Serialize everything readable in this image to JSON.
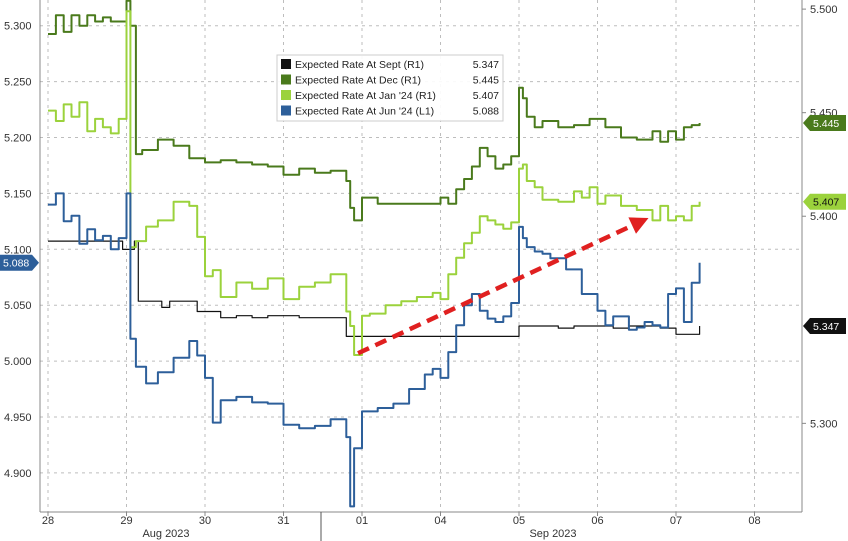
{
  "chart_data": {
    "type": "line",
    "title": "",
    "xlabel": "",
    "x_tick_labels": [
      "28",
      "29",
      "30",
      "31",
      "01",
      "04",
      "05",
      "06",
      "07",
      "08"
    ],
    "month_labels": [
      "Aug 2023",
      "Sep 2023"
    ],
    "left_axis": {
      "ticks": [
        "4.900",
        "4.950",
        "5.000",
        "5.050",
        "5.100",
        "5.150",
        "5.200",
        "5.250",
        "5.300"
      ],
      "ylim": [
        4.865,
        5.323
      ]
    },
    "right_axis": {
      "ticks": [
        "5.300",
        "5.400",
        "5.450",
        "5.500"
      ],
      "ylim": [
        5.2572,
        5.5044
      ]
    },
    "grid": true,
    "legend_position": "top-center",
    "series": [
      {
        "name": "Expected Rate At Sept (R1)",
        "legend_value": "5.347",
        "axis": "right",
        "color": "#111111",
        "x": [
          0,
          0.9,
          0.95,
          1.1,
          1.15,
          1.35,
          1.45,
          1.55,
          1.8,
          1.9,
          2.1,
          2.2,
          2.4,
          2.6,
          2.8,
          3.0,
          3.2,
          3.5,
          3.75,
          3.8,
          4.1,
          4.5,
          5.0,
          5.5,
          5.9,
          6.0,
          6.1,
          6.3,
          6.5,
          6.7,
          7.0,
          7.2,
          7.4,
          7.6,
          7.8,
          8.0,
          8.3
        ],
        "values": [
          5.388,
          5.388,
          5.384,
          5.388,
          5.359,
          5.359,
          5.356,
          5.359,
          5.359,
          5.354,
          5.354,
          5.351,
          5.352,
          5.351,
          5.352,
          5.352,
          5.351,
          5.351,
          5.351,
          5.342,
          5.342,
          5.342,
          5.342,
          5.342,
          5.342,
          5.347,
          5.347,
          5.347,
          5.346,
          5.347,
          5.347,
          5.346,
          5.347,
          5.347,
          5.346,
          5.343,
          5.347
        ]
      },
      {
        "name": "Expected Rate At Dec (R1)",
        "legend_value": "5.445",
        "axis": "right",
        "color": "#4a7a1c",
        "x": [
          0,
          0.1,
          0.2,
          0.3,
          0.4,
          0.5,
          0.6,
          0.7,
          0.8,
          0.9,
          1.0,
          1.05,
          1.12,
          1.2,
          1.4,
          1.6,
          1.8,
          2.0,
          2.2,
          2.4,
          2.6,
          2.8,
          3.0,
          3.2,
          3.4,
          3.6,
          3.8,
          3.85,
          3.9,
          4.0,
          4.2,
          4.5,
          4.8,
          5.0,
          5.1,
          5.2,
          5.3,
          5.4,
          5.5,
          5.6,
          5.7,
          5.8,
          5.9,
          6.0,
          6.05,
          6.1,
          6.2,
          6.3,
          6.5,
          6.7,
          6.9,
          7.1,
          7.3,
          7.5,
          7.7,
          7.8,
          7.9,
          8.0,
          8.1,
          8.2,
          8.3
        ],
        "values": [
          5.488,
          5.497,
          5.489,
          5.497,
          5.492,
          5.497,
          5.494,
          5.496,
          5.494,
          5.494,
          5.504,
          5.492,
          5.43,
          5.432,
          5.437,
          5.434,
          5.428,
          5.426,
          5.427,
          5.426,
          5.425,
          5.424,
          5.42,
          5.423,
          5.421,
          5.422,
          5.417,
          5.404,
          5.398,
          5.409,
          5.406,
          5.406,
          5.406,
          5.409,
          5.406,
          5.413,
          5.418,
          5.424,
          5.433,
          5.429,
          5.423,
          5.425,
          5.429,
          5.462,
          5.457,
          5.448,
          5.443,
          5.446,
          5.443,
          5.444,
          5.447,
          5.443,
          5.438,
          5.437,
          5.441,
          5.436,
          5.441,
          5.437,
          5.443,
          5.444,
          5.445
        ]
      },
      {
        "name": "Expected Rate At Jan '24 (R1)",
        "legend_value": "5.407",
        "axis": "right",
        "color": "#9bd23c",
        "x": [
          0,
          0.1,
          0.2,
          0.3,
          0.4,
          0.5,
          0.6,
          0.7,
          0.8,
          0.9,
          1.0,
          1.05,
          1.12,
          1.25,
          1.4,
          1.6,
          1.8,
          1.9,
          2.0,
          2.1,
          2.2,
          2.4,
          2.6,
          2.8,
          3.0,
          3.2,
          3.4,
          3.6,
          3.8,
          3.85,
          3.9,
          4.0,
          4.1,
          4.3,
          4.5,
          4.7,
          4.9,
          5.0,
          5.1,
          5.2,
          5.3,
          5.4,
          5.5,
          5.6,
          5.7,
          5.8,
          5.9,
          6.0,
          6.05,
          6.1,
          6.2,
          6.3,
          6.5,
          6.7,
          6.8,
          6.9,
          7.0,
          7.1,
          7.3,
          7.5,
          7.7,
          7.8,
          7.9,
          8.0,
          8.1,
          8.2,
          8.3
        ],
        "values": [
          5.451,
          5.446,
          5.454,
          5.448,
          5.455,
          5.441,
          5.447,
          5.443,
          5.44,
          5.447,
          5.499,
          5.385,
          5.388,
          5.395,
          5.398,
          5.407,
          5.405,
          5.39,
          5.371,
          5.374,
          5.361,
          5.368,
          5.365,
          5.37,
          5.36,
          5.366,
          5.368,
          5.372,
          5.354,
          5.347,
          5.333,
          5.352,
          5.353,
          5.357,
          5.359,
          5.361,
          5.363,
          5.36,
          5.372,
          5.38,
          5.387,
          5.392,
          5.4,
          5.398,
          5.396,
          5.394,
          5.397,
          5.423,
          5.425,
          5.417,
          5.414,
          5.408,
          5.407,
          5.412,
          5.409,
          5.414,
          5.406,
          5.41,
          5.405,
          5.403,
          5.398,
          5.405,
          5.398,
          5.4,
          5.398,
          5.405,
          5.407
        ]
      },
      {
        "name": "Expected Rate At Jun '24 (L1)",
        "legend_value": "5.088",
        "axis": "left",
        "color": "#2d5f9a",
        "x": [
          0,
          0.1,
          0.2,
          0.3,
          0.4,
          0.5,
          0.6,
          0.7,
          0.8,
          0.9,
          1.0,
          1.05,
          1.12,
          1.25,
          1.4,
          1.6,
          1.8,
          1.9,
          2.0,
          2.1,
          2.2,
          2.4,
          2.6,
          2.8,
          3.0,
          3.2,
          3.4,
          3.6,
          3.8,
          3.85,
          3.9,
          4.0,
          4.2,
          4.4,
          4.6,
          4.8,
          4.9,
          5.0,
          5.1,
          5.2,
          5.3,
          5.4,
          5.5,
          5.6,
          5.7,
          5.8,
          5.9,
          6.0,
          6.05,
          6.1,
          6.2,
          6.3,
          6.4,
          6.6,
          6.8,
          7.0,
          7.1,
          7.2,
          7.4,
          7.5,
          7.6,
          7.7,
          7.8,
          7.9,
          8.0,
          8.1,
          8.2,
          8.3
        ],
        "values": [
          5.14,
          5.15,
          5.125,
          5.13,
          5.105,
          5.118,
          5.108,
          5.112,
          5.1,
          5.11,
          5.15,
          5.02,
          4.995,
          4.98,
          4.99,
          5.003,
          5.018,
          5.005,
          4.985,
          4.945,
          4.965,
          4.968,
          4.963,
          4.962,
          4.943,
          4.94,
          4.942,
          4.948,
          4.932,
          4.87,
          4.922,
          4.955,
          4.958,
          4.962,
          4.975,
          4.988,
          4.993,
          4.985,
          5.008,
          5.032,
          5.05,
          5.06,
          5.045,
          5.038,
          5.035,
          5.04,
          5.052,
          5.12,
          5.11,
          5.102,
          5.098,
          5.096,
          5.092,
          5.082,
          5.06,
          5.045,
          5.032,
          5.04,
          5.028,
          5.03,
          5.035,
          5.032,
          5.03,
          5.06,
          5.065,
          5.035,
          5.07,
          5.088
        ]
      }
    ],
    "tags": [
      {
        "series": 0,
        "text": "5.347",
        "bg": "#111111",
        "fg": "#ffffff",
        "side": "right"
      },
      {
        "series": 1,
        "text": "5.445",
        "bg": "#4a7a1c",
        "fg": "#ffffff",
        "side": "right"
      },
      {
        "series": 2,
        "text": "5.407",
        "bg": "#9bd23c",
        "fg": "#111111",
        "side": "right"
      },
      {
        "series": 3,
        "text": "5.088",
        "bg": "#2d5f9a",
        "fg": "#ffffff",
        "side": "left"
      }
    ],
    "annotation": {
      "type": "arrow",
      "style": "dashed",
      "color": "#e02020",
      "from": [
        3.95,
        5.007
      ],
      "to": [
        7.65,
        5.128
      ],
      "axis": "left"
    }
  }
}
